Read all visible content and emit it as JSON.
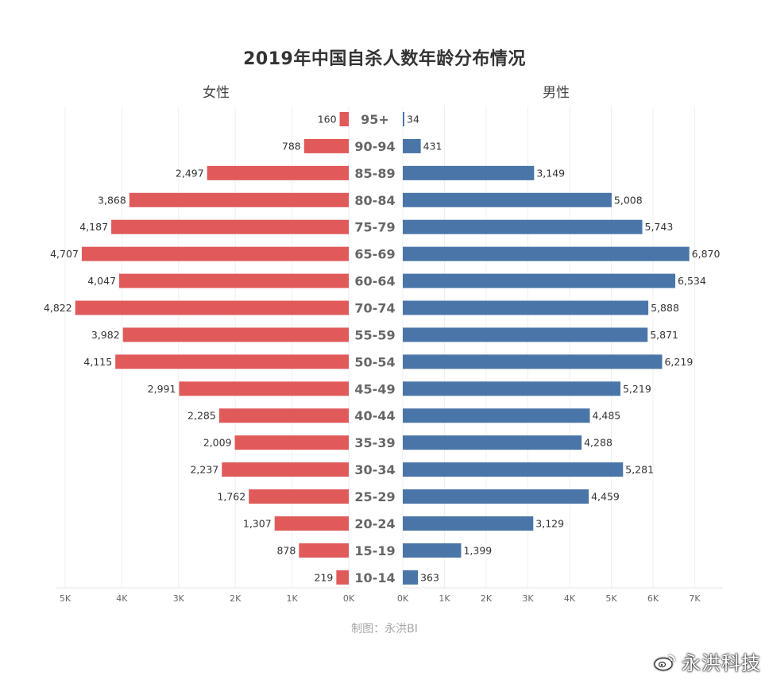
{
  "chart_data": {
    "type": "bar",
    "orientation": "horizontal",
    "layout": "population-pyramid (butterfly)",
    "title": "2019年中国自杀人数年龄分布情况",
    "categories": [
      "95+",
      "90-94",
      "85-89",
      "80-84",
      "75-79",
      "65-69",
      "60-64",
      "70-74",
      "55-59",
      "50-54",
      "45-49",
      "40-44",
      "35-39",
      "30-34",
      "25-29",
      "20-24",
      "15-19",
      "10-14"
    ],
    "series": [
      {
        "name": "女性",
        "side": "left",
        "color": "#e05a5a",
        "values": [
          160,
          788,
          2497,
          3868,
          4187,
          4707,
          4047,
          4822,
          3982,
          4115,
          2991,
          2285,
          2009,
          2237,
          1762,
          1307,
          878,
          219
        ],
        "labels": [
          "160",
          "788",
          "2,497",
          "3,868",
          "4,187",
          "4,707",
          "4,047",
          "4,822",
          "3,982",
          "4,115",
          "2,991",
          "2,285",
          "2,009",
          "2,237",
          "1,762",
          "1,307",
          "878",
          "219"
        ]
      },
      {
        "name": "男性",
        "side": "right",
        "color": "#4a75a8",
        "values": [
          34,
          431,
          3149,
          5008,
          5743,
          6870,
          6534,
          5888,
          5871,
          6219,
          5219,
          4485,
          4288,
          5281,
          4459,
          3129,
          1399,
          363
        ],
        "labels": [
          "34",
          "431",
          "3,149",
          "5,008",
          "5,743",
          "6,870",
          "6,534",
          "5,888",
          "5,871",
          "6,219",
          "5,219",
          "4,485",
          "4,288",
          "5,281",
          "4,459",
          "3,129",
          "1,399",
          "363"
        ]
      }
    ],
    "left_axis": {
      "xlim": [
        0,
        5000
      ],
      "ticks": [
        5000,
        4000,
        3000,
        2000,
        1000,
        0
      ],
      "tick_labels": [
        "5K",
        "4K",
        "3K",
        "2K",
        "1K",
        "0K"
      ]
    },
    "right_axis": {
      "xlim": [
        0,
        7000
      ],
      "ticks": [
        0,
        1000,
        2000,
        3000,
        4000,
        5000,
        6000,
        7000
      ],
      "tick_labels": [
        "0K",
        "1K",
        "2K",
        "3K",
        "4K",
        "5K",
        "6K",
        "7K"
      ]
    },
    "grid": true,
    "data_labels": true
  },
  "credit": "制图：永洪BI",
  "watermark": {
    "text": "永洪科技",
    "icon": "weibo-icon"
  }
}
